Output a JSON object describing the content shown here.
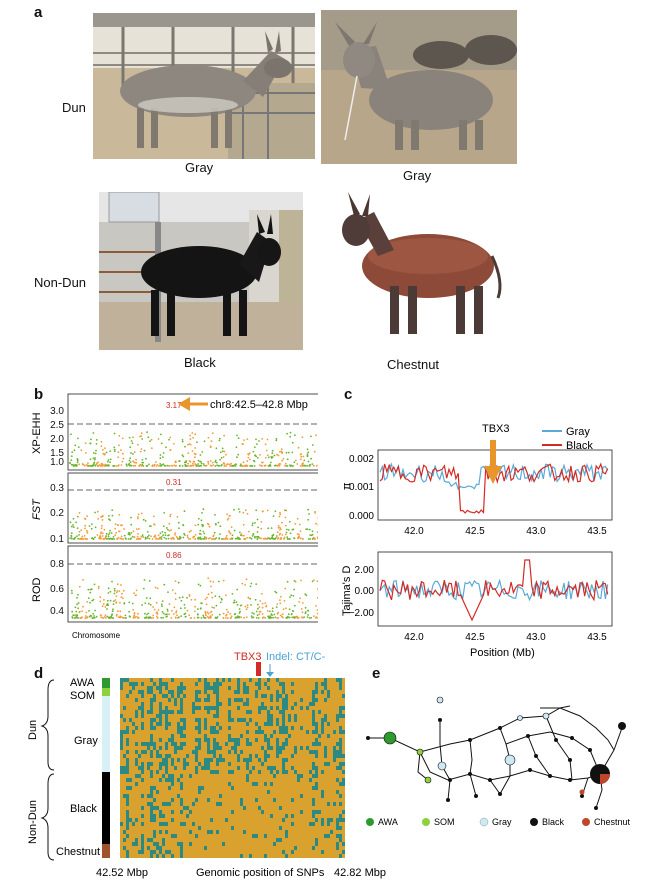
{
  "panel_a": {
    "label": "a",
    "row_dun": "Dun",
    "row_nondun": "Non-Dun",
    "photos": [
      {
        "caption": "Gray"
      },
      {
        "caption": "Gray"
      },
      {
        "caption": "Black"
      },
      {
        "caption": "Chestnut"
      }
    ]
  },
  "panel_b": {
    "label": "b",
    "annotation": "chr8:42.5–42.8 Mbp",
    "xlabel": "Chromosome",
    "tracks": [
      {
        "ylabel": "XP-EHH",
        "peak_label": "3.17",
        "ticks": [
          "3.0",
          "2.5",
          "2.0",
          "1.5",
          "1.0"
        ]
      },
      {
        "ylabel": "FST",
        "peak_label": "0.31",
        "ticks": [
          "0.3",
          "0.2",
          "0.1"
        ]
      },
      {
        "ylabel": "ROD",
        "peak_label": "0.86",
        "ticks": [
          "0.8",
          "0.6",
          "0.4"
        ]
      }
    ]
  },
  "panel_c": {
    "label": "c",
    "gene": "TBX3",
    "legend": [
      {
        "name": "Gray",
        "color": "#5aa9d6"
      },
      {
        "name": "Black",
        "color": "#d22b25"
      }
    ],
    "pi_ylabel": "π",
    "pi_ticks": [
      "0.002",
      "0.001",
      "0.000"
    ],
    "td_ylabel": "Tajima's D",
    "td_ticks": [
      "2.00",
      "0.00",
      "−2.00"
    ],
    "x_ticks": [
      "42.0",
      "42.5",
      "43.0",
      "43.5"
    ],
    "xlabel": "Position (Mb)"
  },
  "panel_d": {
    "label": "d",
    "gene": "TBX3",
    "indel": "Indel: CT/C-",
    "groups": [
      "AWA",
      "SOM",
      "Gray",
      "Black",
      "Chestnut"
    ],
    "brace_dun": "Dun",
    "brace_nondun": "Non-Dun",
    "x_left": "42.52 Mbp",
    "x_mid": "Genomic position of SNPs",
    "x_right": "42.82 Mbp"
  },
  "panel_e": {
    "label": "e",
    "legend": [
      {
        "name": "AWA",
        "color": "#2e9a2e"
      },
      {
        "name": "SOM",
        "color": "#8cd23c"
      },
      {
        "name": "Gray",
        "color": "#cde9f2"
      },
      {
        "name": "Black",
        "color": "#111111"
      },
      {
        "name": "Chestnut",
        "color": "#c0452a"
      }
    ]
  },
  "colors": {
    "green": "#6ab42d",
    "orange": "#f39b35",
    "matrix_gold": "#d9a22e",
    "matrix_teal": "#2d8a82",
    "arrow": "#e8952c"
  }
}
